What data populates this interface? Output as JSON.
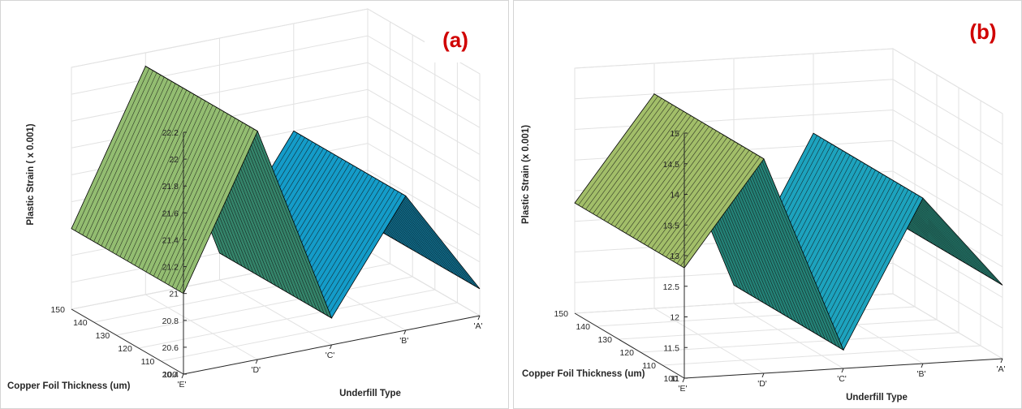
{
  "figure": {
    "panels": [
      {
        "label": "(a)"
      },
      {
        "label": "(b)"
      }
    ]
  },
  "chart_data": [
    {
      "type": "surface",
      "panel": "(a)",
      "xlabel": "Underfill Type",
      "ylabel": "Copper Foil Thickness (um)",
      "zlabel": "Plastic Strain ( x 0.001)",
      "x_categories": [
        "'E'",
        "'D'",
        "'C'",
        "'B'",
        "'A'"
      ],
      "y_ticks": [
        100,
        110,
        120,
        130,
        140,
        150
      ],
      "z_ticks": [
        20.4,
        20.6,
        20.8,
        21,
        21.2,
        21.4,
        21.6,
        21.8,
        22,
        22.2
      ],
      "zlim": [
        20.4,
        22.2
      ],
      "ylim": [
        100,
        150
      ],
      "values": [
        21.0,
        22.1,
        20.6,
        21.4,
        20.6
      ],
      "colormap": "parula",
      "grid": true
    },
    {
      "type": "surface",
      "panel": "(b)",
      "xlabel": "Underfill Type",
      "ylabel": "Copper Foil Thickness (um)",
      "zlabel": "Plastic Strain (x 0.001)",
      "x_categories": [
        "'E'",
        "'D'",
        "'C'",
        "'B'",
        "'A'"
      ],
      "y_ticks": [
        100,
        110,
        120,
        130,
        140,
        150
      ],
      "z_ticks": [
        11,
        11.5,
        12,
        12.5,
        13,
        13.5,
        14,
        14.5,
        15
      ],
      "zlim": [
        11,
        15
      ],
      "ylim": [
        100,
        150
      ],
      "values": [
        12.8,
        14.5,
        11.3,
        13.7,
        12.2
      ],
      "colormap": "parula",
      "grid": true
    }
  ]
}
